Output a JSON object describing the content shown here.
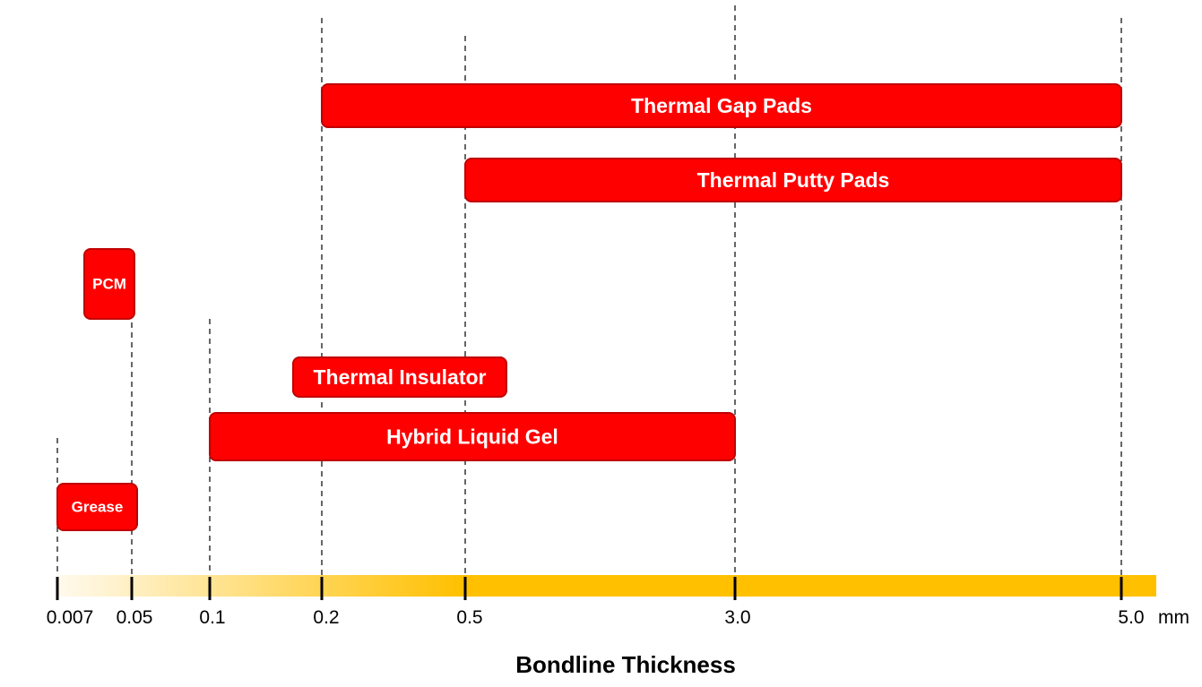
{
  "chart_data": {
    "type": "bar",
    "orientation": "horizontal-range",
    "xlabel": "Bondline Thickness",
    "unit": "mm",
    "x_scale": "categorical",
    "ticks": [
      {
        "value": 0.007,
        "label": "0.007"
      },
      {
        "value": 0.05,
        "label": "0.05"
      },
      {
        "value": 0.1,
        "label": "0.1"
      },
      {
        "value": 0.2,
        "label": "0.2"
      },
      {
        "value": 0.5,
        "label": "0.5"
      },
      {
        "value": 3.0,
        "label": "3.0"
      },
      {
        "value": 5.0,
        "label": "5.0"
      }
    ],
    "series": [
      {
        "name": "Thermal Gap Pads",
        "min": 0.2,
        "max": 5.0
      },
      {
        "name": "Thermal Putty Pads",
        "min": 0.5,
        "max": 5.0
      },
      {
        "name": "PCM",
        "min": 0.03,
        "max": 0.05
      },
      {
        "name": "Thermal Insulator",
        "min": 0.18,
        "max": 0.6
      },
      {
        "name": "Hybrid Liquid Gel",
        "min": 0.1,
        "max": 3.0
      },
      {
        "name": "Grease",
        "min": 0.007,
        "max": 0.05
      }
    ],
    "grid": false,
    "colors": {
      "bar_fill": "#ff0000",
      "bar_stroke": "#c00000",
      "axis_band_start": "#fffaee",
      "axis_band_end": "#ffc000",
      "guide_line": "#333333"
    }
  }
}
